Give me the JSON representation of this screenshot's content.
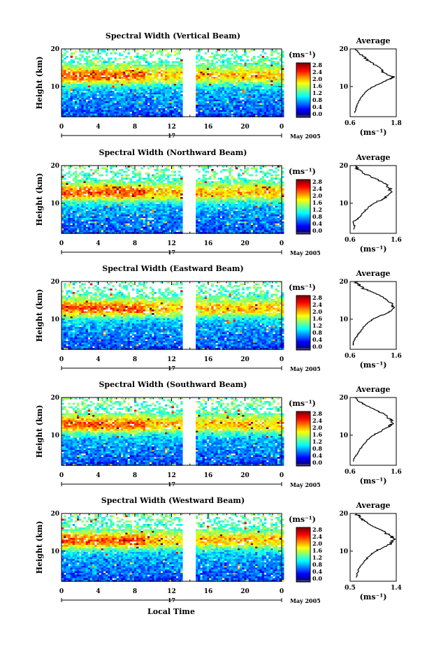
{
  "figure": {
    "month_label": "May 2005",
    "day_label": "17",
    "xlabel": "Local Time",
    "colorbar_unit": "(ms⁻¹)",
    "average_title": "Average",
    "average_xlabel": "(ms⁻¹)"
  },
  "chart_data": [
    {
      "type": "heatmap",
      "title": "Spectral Width (Vertical Beam)",
      "ylabel": "Height (km)",
      "xlabel": "Local Time",
      "xlim": [
        0,
        24
      ],
      "x_ticks": [
        "0",
        "4",
        "8",
        "12",
        "16",
        "20",
        "0"
      ],
      "ylim": [
        2,
        20
      ],
      "y_ticks": [
        "20",
        "10"
      ],
      "data_gap_hours": [
        13.2,
        14.6
      ],
      "peak_layer_km": 13,
      "colorbar": {
        "min": 0.0,
        "max": 2.8,
        "ticks": [
          "2.8",
          "2.4",
          "2.0",
          "1.6",
          "1.2",
          "0.8",
          "0.4",
          "0.0"
        ]
      },
      "average_profile": {
        "xlim": [
          0.6,
          1.8
        ],
        "x_ticks": [
          "0.6",
          "1.8"
        ],
        "y_ticks": [
          "20",
          "10"
        ],
        "heights": [
          3,
          4,
          5,
          6,
          7,
          8,
          9,
          10,
          11,
          12,
          12.5,
          13,
          14,
          15,
          16,
          17,
          18,
          19,
          20
        ],
        "values": [
          0.72,
          0.75,
          0.78,
          0.82,
          0.88,
          0.95,
          1.05,
          1.2,
          1.42,
          1.62,
          1.75,
          1.6,
          1.45,
          1.38,
          1.22,
          1.05,
          0.95,
          0.82,
          0.72
        ]
      }
    },
    {
      "type": "heatmap",
      "title": "Spectral Width (Northward Beam)",
      "ylabel": "Height (km)",
      "xlabel": "Local Time",
      "xlim": [
        0,
        24
      ],
      "x_ticks": [
        "0",
        "4",
        "8",
        "12",
        "16",
        "20",
        "0"
      ],
      "ylim": [
        2,
        20
      ],
      "y_ticks": [
        "20",
        "10"
      ],
      "data_gap_hours": [
        13.2,
        14.6
      ],
      "peak_layer_km": 13,
      "colorbar": {
        "min": 0.0,
        "max": 2.8,
        "ticks": [
          "2.8",
          "2.4",
          "2.0",
          "1.6",
          "1.2",
          "0.8",
          "0.4",
          "0.0"
        ]
      },
      "average_profile": {
        "xlim": [
          0.6,
          1.6
        ],
        "x_ticks": [
          "0.6",
          "1.6"
        ],
        "y_ticks": [
          "20",
          "10"
        ],
        "heights": [
          3,
          4,
          5,
          6,
          7,
          8,
          9,
          10,
          11,
          12,
          13,
          14,
          15,
          16,
          17,
          18,
          19,
          20
        ],
        "values": [
          0.68,
          0.7,
          0.66,
          0.78,
          0.85,
          0.92,
          1.0,
          1.12,
          1.3,
          1.42,
          1.5,
          1.45,
          1.38,
          1.25,
          1.05,
          0.88,
          0.78,
          0.72
        ]
      }
    },
    {
      "type": "heatmap",
      "title": "Spectral Width (Eastward Beam)",
      "ylabel": "Height (km)",
      "xlabel": "Local Time",
      "xlim": [
        0,
        24
      ],
      "x_ticks": [
        "0",
        "4",
        "8",
        "12",
        "16",
        "20",
        "0"
      ],
      "ylim": [
        2,
        20
      ],
      "y_ticks": [
        "20",
        "10"
      ],
      "data_gap_hours": [
        13.2,
        14.6
      ],
      "peak_layer_km": 13,
      "colorbar": {
        "min": 0.0,
        "max": 2.8,
        "ticks": [
          "2.8",
          "2.4",
          "2.0",
          "1.6",
          "1.2",
          "0.8",
          "0.4",
          "0.0"
        ]
      },
      "average_profile": {
        "xlim": [
          0.6,
          1.6
        ],
        "x_ticks": [
          "0.6",
          "1.6"
        ],
        "y_ticks": [
          "20",
          "10"
        ],
        "heights": [
          3,
          4,
          5,
          6,
          7,
          8,
          9,
          10,
          11,
          12,
          13,
          14,
          15,
          16,
          17,
          18,
          19,
          20
        ],
        "values": [
          0.66,
          0.68,
          0.72,
          0.78,
          0.84,
          0.9,
          0.98,
          1.1,
          1.28,
          1.45,
          1.55,
          1.5,
          1.42,
          1.3,
          1.12,
          0.92,
          0.8,
          0.7
        ]
      }
    },
    {
      "type": "heatmap",
      "title": "Spectral Width (Southward Beam)",
      "ylabel": "Height (km)",
      "xlabel": "Local Time",
      "xlim": [
        0,
        24
      ],
      "x_ticks": [
        "0",
        "4",
        "8",
        "12",
        "16",
        "20",
        "0"
      ],
      "ylim": [
        2,
        20
      ],
      "y_ticks": [
        "20",
        "10"
      ],
      "data_gap_hours": [
        13.2,
        14.6
      ],
      "peak_layer_km": 13,
      "colorbar": {
        "min": 0.0,
        "max": 2.8,
        "ticks": [
          "2.8",
          "2.4",
          "2.0",
          "1.6",
          "1.2",
          "0.8",
          "0.4",
          "0.0"
        ]
      },
      "average_profile": {
        "xlim": [
          0.6,
          1.6
        ],
        "x_ticks": [
          "0.6",
          "1.6"
        ],
        "y_ticks": [
          "20",
          "10"
        ],
        "heights": [
          3,
          4,
          5,
          6,
          7,
          8,
          9,
          10,
          11,
          12,
          13,
          14,
          15,
          16,
          17,
          18,
          19,
          20
        ],
        "values": [
          0.66,
          0.7,
          0.75,
          0.8,
          0.86,
          0.92,
          1.0,
          1.1,
          1.25,
          1.4,
          1.52,
          1.5,
          1.4,
          1.28,
          1.1,
          0.92,
          0.78,
          0.7
        ]
      }
    },
    {
      "type": "heatmap",
      "title": "Spectral Width (Westward Beam)",
      "ylabel": "Height (km)",
      "xlabel": "Local Time",
      "xlim": [
        0,
        24
      ],
      "x_ticks": [
        "0",
        "4",
        "8",
        "12",
        "16",
        "20",
        "0"
      ],
      "ylim": [
        2,
        20
      ],
      "y_ticks": [
        "20",
        "10"
      ],
      "data_gap_hours": [
        13.2,
        14.6
      ],
      "peak_layer_km": 13,
      "colorbar": {
        "min": 0.0,
        "max": 2.8,
        "ticks": [
          "2.8",
          "2.4",
          "2.0",
          "1.6",
          "1.2",
          "0.8",
          "0.4",
          "0.0"
        ]
      },
      "average_profile": {
        "xlim": [
          0.5,
          1.4
        ],
        "x_ticks": [
          "0.5",
          "1.4"
        ],
        "y_ticks": [
          "20",
          "10"
        ],
        "heights": [
          3,
          4,
          5,
          6,
          7,
          8,
          9,
          10,
          11,
          12,
          13,
          14,
          15,
          16,
          17,
          18,
          19,
          20
        ],
        "values": [
          0.62,
          0.64,
          0.66,
          0.7,
          0.76,
          0.82,
          0.9,
          1.0,
          1.15,
          1.28,
          1.35,
          1.3,
          1.2,
          1.05,
          0.9,
          0.78,
          0.68,
          0.62
        ]
      }
    }
  ]
}
